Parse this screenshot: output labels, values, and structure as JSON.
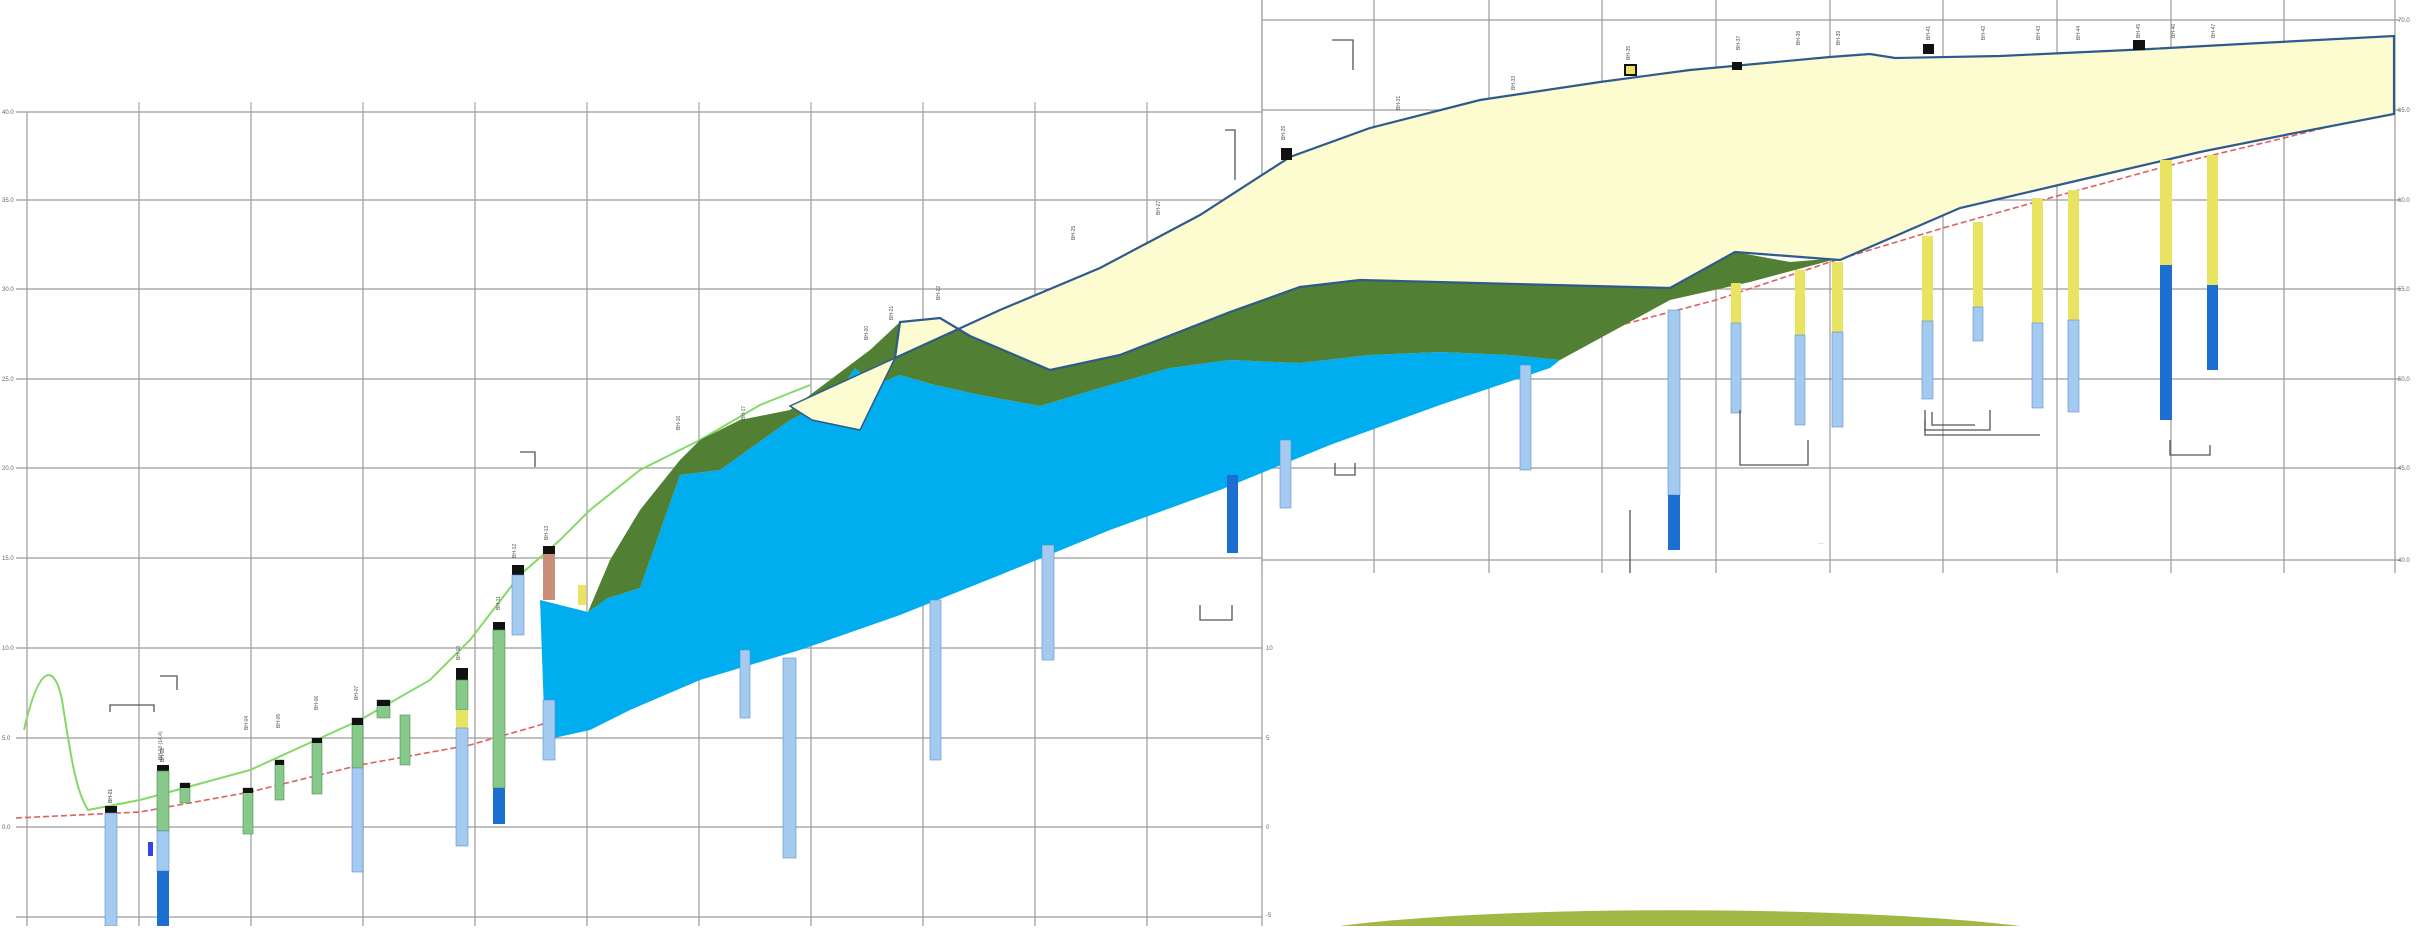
{
  "section": {
    "annotation": "...",
    "colors": {
      "background": "#ffffff",
      "grid": "#9a9a9a",
      "embankment_fill": "#fdfbd0",
      "embankment_stroke": "#2e5a8c",
      "clay_layer": "#517f33",
      "sand_layer": "#00adee",
      "ground_line": "#e06060",
      "green_line": "#86d968",
      "hill": "#a2b844",
      "borehole_light_blue": "#a4cbef",
      "borehole_dark_blue": "#1a6fd1",
      "borehole_yellow": "#e8e360",
      "borehole_green": "#86c98a",
      "borehole_black": "#111111"
    }
  }
}
